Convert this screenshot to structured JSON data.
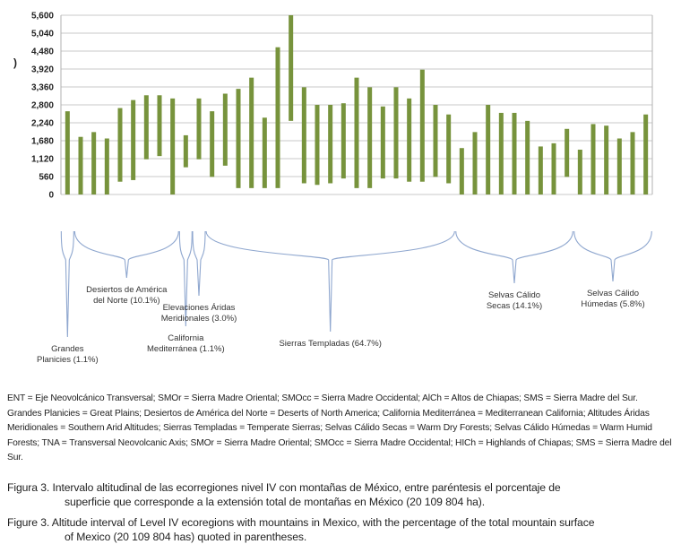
{
  "chart_data": {
    "type": "floating-bar",
    "ylabel": ")",
    "yticks": [
      0,
      560,
      1120,
      1680,
      2240,
      2800,
      3360,
      3920,
      4480,
      5040,
      5600
    ],
    "ytick_labels": [
      "0",
      "560",
      "1,120",
      "1,680",
      "2,240",
      "2,800",
      "3,360",
      "3,920",
      "4,480",
      "5,040",
      "5,600"
    ],
    "ylim": [
      0,
      5600
    ],
    "grid": true,
    "bar_color": "#77933c",
    "bars": [
      [
        0,
        2600
      ],
      [
        0,
        1800
      ],
      [
        0,
        1950
      ],
      [
        0,
        1750
      ],
      [
        400,
        2700
      ],
      [
        450,
        2950
      ],
      [
        1100,
        3100
      ],
      [
        1200,
        3100
      ],
      [
        0,
        3000
      ],
      [
        850,
        1850
      ],
      [
        1100,
        3000
      ],
      [
        550,
        2600
      ],
      [
        900,
        3150
      ],
      [
        200,
        3300
      ],
      [
        200,
        3650
      ],
      [
        200,
        2400
      ],
      [
        200,
        4600
      ],
      [
        2300,
        5600
      ],
      [
        350,
        3350
      ],
      [
        300,
        2800
      ],
      [
        350,
        2800
      ],
      [
        500,
        2850
      ],
      [
        200,
        3650
      ],
      [
        200,
        3350
      ],
      [
        500,
        2750
      ],
      [
        500,
        3350
      ],
      [
        400,
        3000
      ],
      [
        400,
        3900
      ],
      [
        550,
        2800
      ],
      [
        350,
        2500
      ],
      [
        0,
        1450
      ],
      [
        0,
        1950
      ],
      [
        0,
        2800
      ],
      [
        0,
        2550
      ],
      [
        0,
        2550
      ],
      [
        0,
        2300
      ],
      [
        0,
        1500
      ],
      [
        0,
        1600
      ],
      [
        550,
        2050
      ],
      [
        0,
        1400
      ],
      [
        0,
        2200
      ],
      [
        0,
        2150
      ],
      [
        0,
        1750
      ],
      [
        0,
        1950
      ],
      [
        0,
        2500
      ]
    ],
    "groups": [
      {
        "label": [
          "Grandes",
          "Planicies (1.1%)"
        ],
        "from": 0,
        "to": 0
      },
      {
        "label": [
          "Desiertos de América",
          "del Norte (10.1%)"
        ],
        "from": 1,
        "to": 8
      },
      {
        "label": [
          "California",
          "Mediterránea (1.1%)"
        ],
        "from": 9,
        "to": 9
      },
      {
        "label": [
          "Elevaciones Áridas",
          "Meridionales (3.0%)"
        ],
        "from": 10,
        "to": 10
      },
      {
        "label": [
          "Sierras Templadas (64.7%)"
        ],
        "from": 11,
        "to": 29
      },
      {
        "label": [
          "Selvas Cálido",
          "Secas (14.1%)"
        ],
        "from": 30,
        "to": 38
      },
      {
        "label": [
          "Selvas Cálido",
          "Húmedas (5.8%)"
        ],
        "from": 39,
        "to": 44
      }
    ]
  },
  "legend_text": "ENT = Eje Neovolcánico Transversal; SMOr = Sierra Madre Oriental; SMOcc = Sierra Madre Occidental; AlCh = Altos de Chiapas; SMS = Sierra Madre del Sur. Grandes Planicies = Great Plains; Desiertos de América del Norte = Deserts of North America; California Mediterránea = Mediterranean California; Altitudes Áridas Meridionales = Southern Arid Altitudes; Sierras Templadas = Temperate Sierras; Selvas Cálido Secas = Warm Dry Forests; Selvas Cálido Húmedas = Warm Humid Forests; TNA = Transversal Neovolcanic Axis; SMOr = Sierra Madre Oriental; SMOcc = Sierra Madre Occidental; HICh = Highlands of Chiapas; SMS = Sierra Madre del Sur.",
  "caption_es": {
    "first": "Figura 3. Intervalo altitudinal de las ecorregiones nivel IV con montañas de México, entre paréntesis el porcentaje de",
    "rest": "superficie que corresponde a la extensión total de montañas en México (20 109 804 ha)."
  },
  "caption_en": {
    "first": "Figure 3. Altitude interval of Level IV ecoregions with mountains in Mexico, with the percentage of the total mountain surface",
    "rest": "of Mexico (20 109 804 has) quoted in parentheses."
  }
}
